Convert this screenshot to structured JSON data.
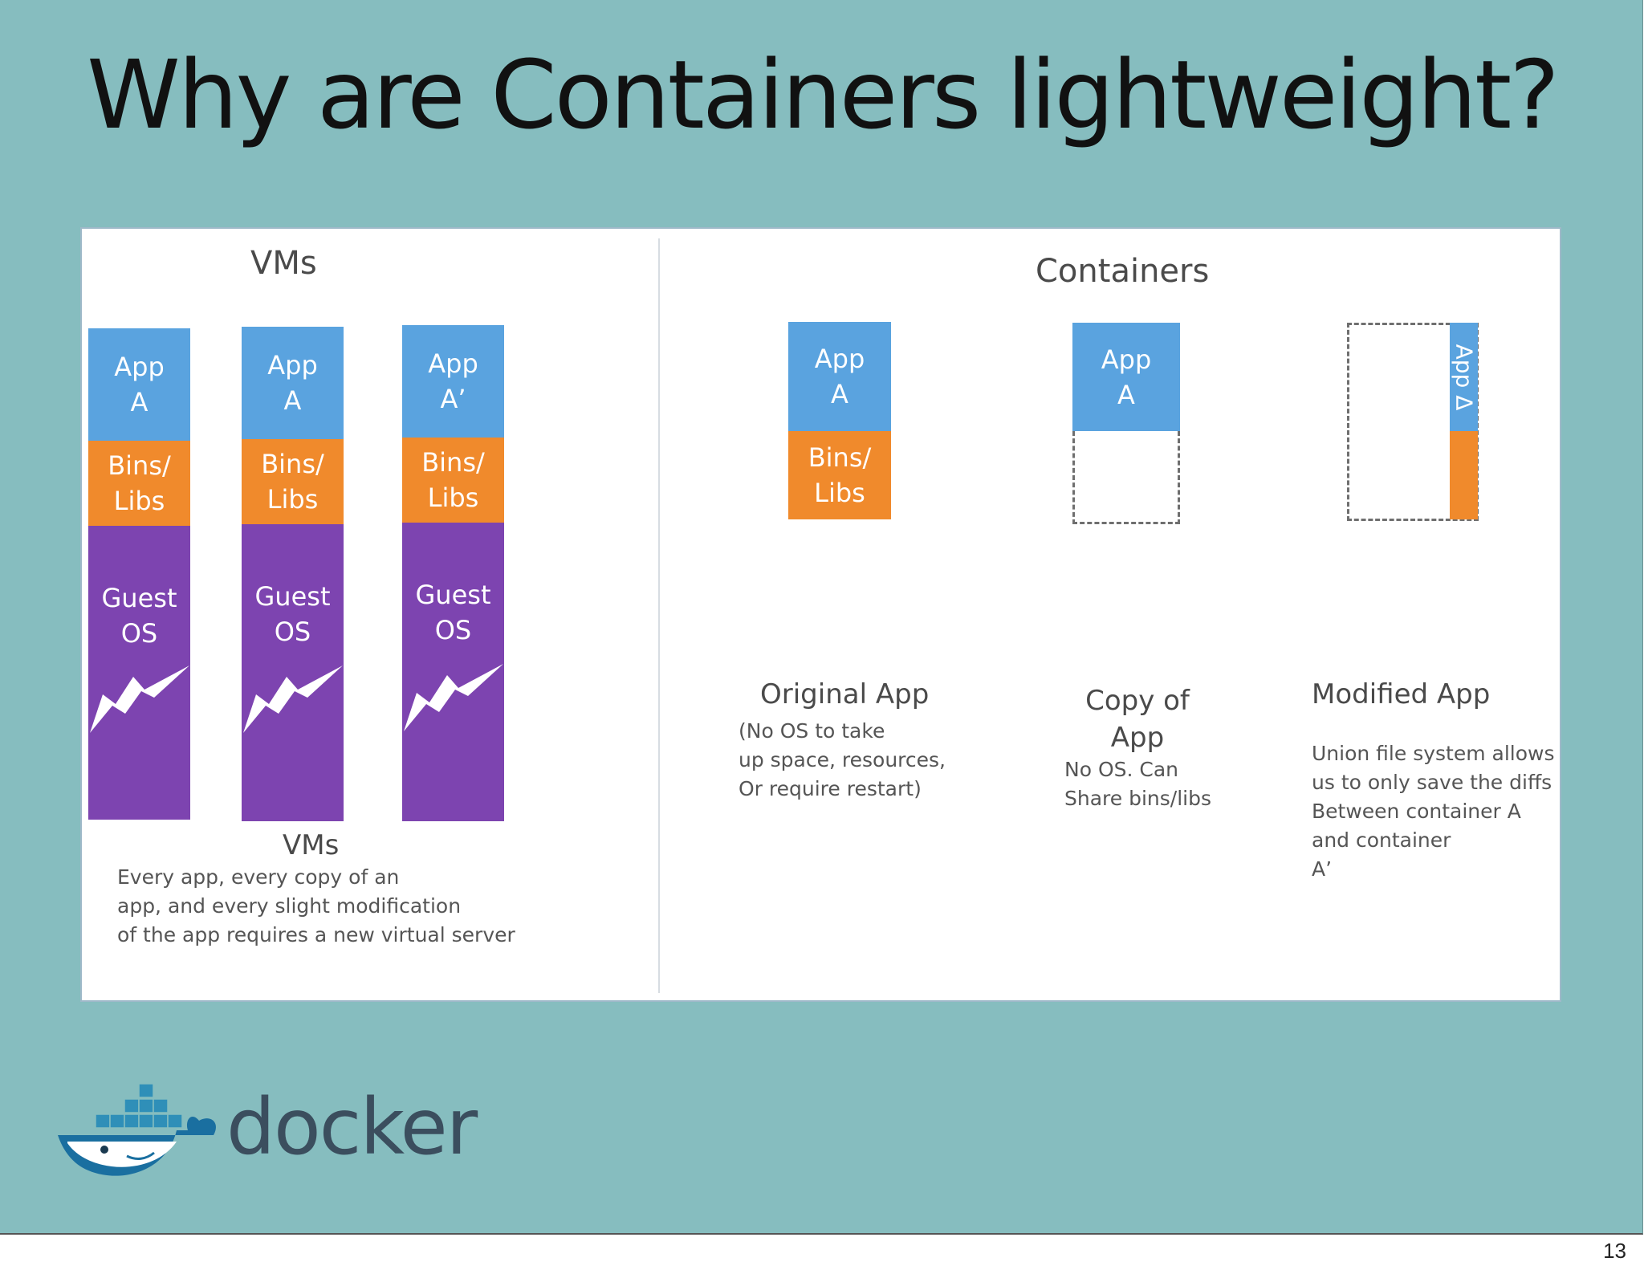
{
  "slide": {
    "title": "Why are Containers lightweight?",
    "page_number": "13"
  },
  "vms": {
    "heading": "VMs",
    "stacks": [
      {
        "app": "App\nA",
        "bins": "Bins/\nLibs",
        "guest": "Guest\nOS"
      },
      {
        "app": "App\nA",
        "bins": "Bins/\nLibs",
        "guest": "Guest\nOS"
      },
      {
        "app": "App\nA’",
        "bins": "Bins/\nLibs",
        "guest": "Guest\nOS"
      }
    ],
    "caption_title": "VMs",
    "caption_body": "Every app, every copy of an\napp, and every slight modification\nof the app requires a new virtual server"
  },
  "containers": {
    "heading": "Containers",
    "original": {
      "app": "App\nA",
      "bins": "Bins/\nLibs",
      "title": "Original App",
      "body": "(No OS to take\nup space, resources,\nOr require restart)"
    },
    "copy": {
      "app": "App\nA",
      "title": "Copy of\nApp",
      "body": "No OS. Can\nShare bins/libs"
    },
    "modified": {
      "app": "App Δ",
      "title": "Modified App",
      "body": "Union file system allows\nus to only save the diffs\nBetween container A\nand container\nA’"
    }
  },
  "logo": {
    "wordmark": "docker"
  },
  "colors": {
    "background": "#86bdbf",
    "app": "#5aa3df",
    "bins": "#f08a2c",
    "guest_os": "#7d44b0",
    "panel": "#ffffff"
  }
}
